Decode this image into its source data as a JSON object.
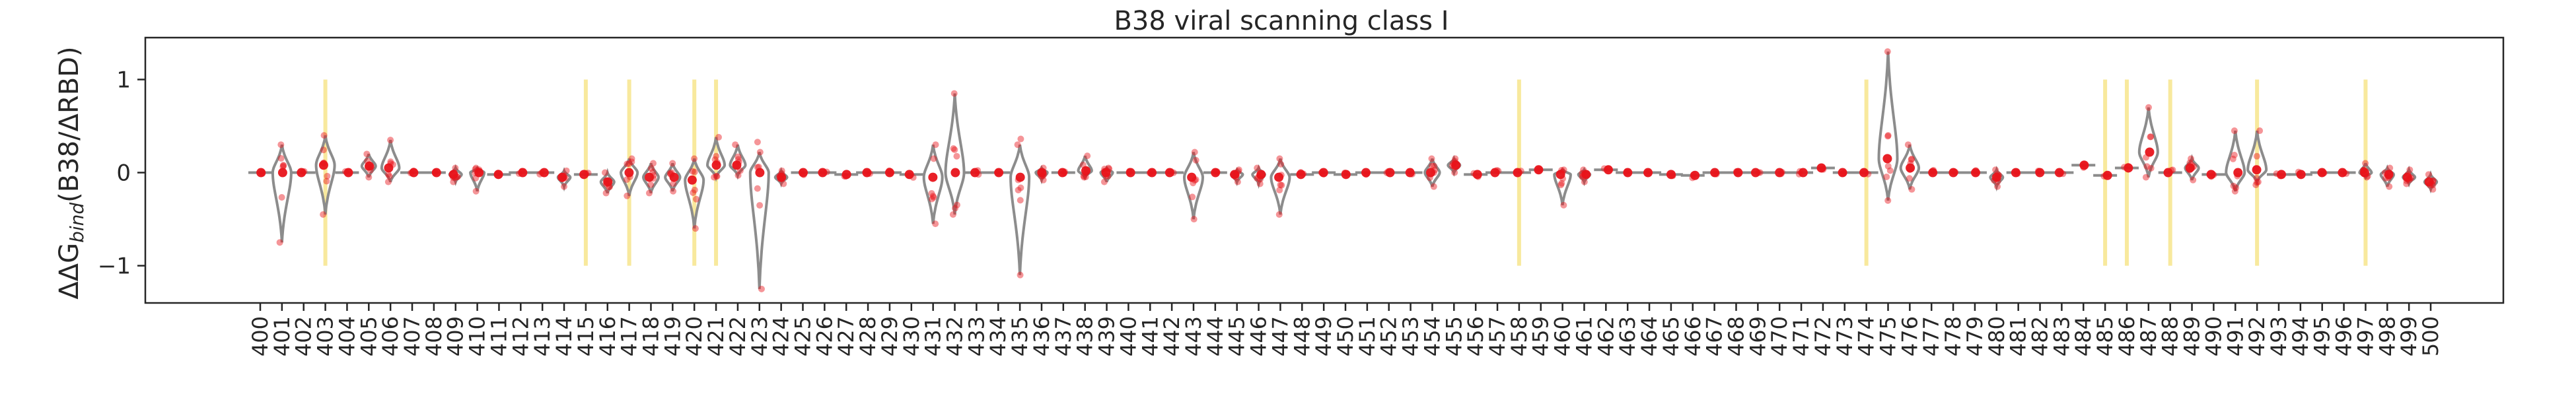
{
  "chart_data": {
    "type": "violin",
    "title": "B38 viral scanning class I",
    "ylabel_main": "ΔΔG",
    "ylabel_sub": "bind",
    "ylabel_rest": "(B38/ΔRBD)",
    "xlabel": "",
    "ylim": [
      -1.4,
      1.45
    ],
    "yticks": [
      -1,
      0,
      1
    ],
    "grid": false,
    "highlight_color": "#f7e58c",
    "violin_color": "#8c8c8c",
    "point_color": "#e8141b",
    "x_start": 400,
    "x_end": 500,
    "highlight_sites": [
      403,
      415,
      417,
      420,
      421,
      458,
      474,
      485,
      486,
      488,
      492,
      497
    ],
    "site_values": [
      {
        "site": 400,
        "center": 0.0,
        "min": -0.02,
        "max": 0.02
      },
      {
        "site": 401,
        "center": 0.0,
        "min": -0.75,
        "max": 0.3
      },
      {
        "site": 402,
        "center": 0.0,
        "min": -0.03,
        "max": 0.03
      },
      {
        "site": 403,
        "center": 0.08,
        "min": -0.45,
        "max": 0.4
      },
      {
        "site": 404,
        "center": 0.0,
        "min": -0.03,
        "max": 0.03
      },
      {
        "site": 405,
        "center": 0.07,
        "min": -0.05,
        "max": 0.2
      },
      {
        "site": 406,
        "center": 0.05,
        "min": -0.1,
        "max": 0.35
      },
      {
        "site": 407,
        "center": 0.0,
        "min": -0.05,
        "max": 0.05
      },
      {
        "site": 408,
        "center": 0.0,
        "min": -0.03,
        "max": 0.03
      },
      {
        "site": 409,
        "center": -0.02,
        "min": -0.1,
        "max": 0.05
      },
      {
        "site": 410,
        "center": 0.0,
        "min": -0.2,
        "max": 0.05
      },
      {
        "site": 411,
        "center": -0.02,
        "min": -0.08,
        "max": 0.03
      },
      {
        "site": 412,
        "center": 0.0,
        "min": -0.03,
        "max": 0.03
      },
      {
        "site": 413,
        "center": 0.0,
        "min": -0.03,
        "max": 0.03
      },
      {
        "site": 414,
        "center": -0.05,
        "min": -0.15,
        "max": 0.02
      },
      {
        "site": 415,
        "center": -0.02,
        "min": -0.06,
        "max": 0.03
      },
      {
        "site": 416,
        "center": -0.1,
        "min": -0.22,
        "max": 0.0
      },
      {
        "site": 417,
        "center": 0.0,
        "min": -0.25,
        "max": 0.15
      },
      {
        "site": 418,
        "center": -0.05,
        "min": -0.22,
        "max": 0.1
      },
      {
        "site": 419,
        "center": -0.05,
        "min": -0.2,
        "max": 0.1
      },
      {
        "site": 420,
        "center": -0.08,
        "min": -0.6,
        "max": 0.15
      },
      {
        "site": 421,
        "center": 0.08,
        "min": -0.05,
        "max": 0.38
      },
      {
        "site": 422,
        "center": 0.08,
        "min": -0.03,
        "max": 0.3
      },
      {
        "site": 423,
        "center": 0.0,
        "min": -1.25,
        "max": 0.22
      },
      {
        "site": 424,
        "center": -0.05,
        "min": -0.12,
        "max": 0.02
      },
      {
        "site": 425,
        "center": 0.0,
        "min": -0.05,
        "max": 0.05
      },
      {
        "site": 426,
        "center": 0.0,
        "min": -0.05,
        "max": 0.05
      },
      {
        "site": 427,
        "center": -0.02,
        "min": -0.06,
        "max": 0.03
      },
      {
        "site": 428,
        "center": 0.0,
        "min": -0.03,
        "max": 0.03
      },
      {
        "site": 429,
        "center": 0.0,
        "min": -0.05,
        "max": 0.05
      },
      {
        "site": 430,
        "center": -0.02,
        "min": -0.08,
        "max": 0.03
      },
      {
        "site": 431,
        "center": -0.05,
        "min": -0.55,
        "max": 0.3
      },
      {
        "site": 432,
        "center": 0.0,
        "min": -0.45,
        "max": 0.85
      },
      {
        "site": 433,
        "center": 0.0,
        "min": -0.05,
        "max": 0.05
      },
      {
        "site": 434,
        "center": 0.0,
        "min": -0.05,
        "max": 0.05
      },
      {
        "site": 435,
        "center": -0.05,
        "min": -1.1,
        "max": 0.3
      },
      {
        "site": 436,
        "center": 0.0,
        "min": -0.08,
        "max": 0.05
      },
      {
        "site": 437,
        "center": 0.0,
        "min": -0.03,
        "max": 0.03
      },
      {
        "site": 438,
        "center": 0.02,
        "min": -0.05,
        "max": 0.18
      },
      {
        "site": 439,
        "center": 0.0,
        "min": -0.1,
        "max": 0.05
      },
      {
        "site": 440,
        "center": 0.0,
        "min": -0.03,
        "max": 0.03
      },
      {
        "site": 441,
        "center": 0.0,
        "min": -0.03,
        "max": 0.03
      },
      {
        "site": 442,
        "center": 0.0,
        "min": -0.03,
        "max": 0.03
      },
      {
        "site": 443,
        "center": -0.05,
        "min": -0.5,
        "max": 0.22
      },
      {
        "site": 444,
        "center": 0.0,
        "min": -0.05,
        "max": 0.03
      },
      {
        "site": 445,
        "center": -0.02,
        "min": -0.1,
        "max": 0.03
      },
      {
        "site": 446,
        "center": -0.02,
        "min": -0.12,
        "max": 0.05
      },
      {
        "site": 447,
        "center": -0.05,
        "min": -0.45,
        "max": 0.15
      },
      {
        "site": 448,
        "center": -0.02,
        "min": -0.06,
        "max": 0.03
      },
      {
        "site": 449,
        "center": 0.0,
        "min": -0.05,
        "max": 0.03
      },
      {
        "site": 450,
        "center": -0.02,
        "min": -0.06,
        "max": 0.03
      },
      {
        "site": 451,
        "center": 0.0,
        "min": -0.05,
        "max": 0.05
      },
      {
        "site": 452,
        "center": 0.0,
        "min": -0.03,
        "max": 0.03
      },
      {
        "site": 453,
        "center": 0.0,
        "min": -0.05,
        "max": 0.05
      },
      {
        "site": 454,
        "center": 0.0,
        "min": -0.15,
        "max": 0.15
      },
      {
        "site": 455,
        "center": 0.08,
        "min": 0.0,
        "max": 0.15
      },
      {
        "site": 456,
        "center": -0.02,
        "min": -0.08,
        "max": 0.03
      },
      {
        "site": 457,
        "center": 0.0,
        "min": -0.05,
        "max": 0.05
      },
      {
        "site": 458,
        "center": 0.0,
        "min": -0.05,
        "max": 0.05
      },
      {
        "site": 459,
        "center": 0.03,
        "min": -0.03,
        "max": 0.08
      },
      {
        "site": 460,
        "center": -0.02,
        "min": -0.35,
        "max": 0.03
      },
      {
        "site": 461,
        "center": -0.02,
        "min": -0.1,
        "max": 0.03
      },
      {
        "site": 462,
        "center": 0.03,
        "min": -0.02,
        "max": 0.08
      },
      {
        "site": 463,
        "center": 0.0,
        "min": -0.03,
        "max": 0.03
      },
      {
        "site": 464,
        "center": 0.0,
        "min": -0.03,
        "max": 0.03
      },
      {
        "site": 465,
        "center": -0.02,
        "min": -0.06,
        "max": 0.03
      },
      {
        "site": 466,
        "center": -0.03,
        "min": -0.08,
        "max": 0.02
      },
      {
        "site": 467,
        "center": 0.0,
        "min": -0.03,
        "max": 0.03
      },
      {
        "site": 468,
        "center": 0.0,
        "min": -0.03,
        "max": 0.03
      },
      {
        "site": 469,
        "center": 0.0,
        "min": -0.03,
        "max": 0.03
      },
      {
        "site": 470,
        "center": 0.0,
        "min": -0.03,
        "max": 0.03
      },
      {
        "site": 471,
        "center": 0.0,
        "min": -0.03,
        "max": 0.03
      },
      {
        "site": 472,
        "center": 0.05,
        "min": 0.0,
        "max": 0.1
      },
      {
        "site": 473,
        "center": 0.0,
        "min": -0.05,
        "max": 0.03
      },
      {
        "site": 474,
        "center": 0.0,
        "min": -0.05,
        "max": 0.05
      },
      {
        "site": 475,
        "center": 0.15,
        "min": -0.3,
        "max": 1.3
      },
      {
        "site": 476,
        "center": 0.05,
        "min": -0.18,
        "max": 0.3
      },
      {
        "site": 477,
        "center": 0.0,
        "min": -0.08,
        "max": 0.03
      },
      {
        "site": 478,
        "center": 0.0,
        "min": -0.05,
        "max": 0.03
      },
      {
        "site": 479,
        "center": 0.0,
        "min": -0.05,
        "max": 0.03
      },
      {
        "site": 480,
        "center": -0.05,
        "min": -0.15,
        "max": 0.03
      },
      {
        "site": 481,
        "center": 0.0,
        "min": -0.05,
        "max": 0.03
      },
      {
        "site": 482,
        "center": 0.0,
        "min": -0.03,
        "max": 0.03
      },
      {
        "site": 483,
        "center": 0.0,
        "min": -0.03,
        "max": 0.03
      },
      {
        "site": 484,
        "center": 0.08,
        "min": 0.03,
        "max": 0.12
      },
      {
        "site": 485,
        "center": -0.03,
        "min": -0.08,
        "max": 0.03
      },
      {
        "site": 486,
        "center": 0.05,
        "min": 0.0,
        "max": 0.1
      },
      {
        "site": 487,
        "center": 0.22,
        "min": -0.05,
        "max": 0.7
      },
      {
        "site": 488,
        "center": 0.0,
        "min": -0.05,
        "max": 0.05
      },
      {
        "site": 489,
        "center": 0.05,
        "min": -0.08,
        "max": 0.15
      },
      {
        "site": 490,
        "center": -0.02,
        "min": -0.06,
        "max": 0.03
      },
      {
        "site": 491,
        "center": 0.0,
        "min": -0.2,
        "max": 0.45
      },
      {
        "site": 492,
        "center": 0.03,
        "min": -0.1,
        "max": 0.45
      },
      {
        "site": 493,
        "center": -0.02,
        "min": -0.08,
        "max": 0.03
      },
      {
        "site": 494,
        "center": -0.02,
        "min": -0.06,
        "max": 0.03
      },
      {
        "site": 495,
        "center": 0.0,
        "min": -0.03,
        "max": 0.03
      },
      {
        "site": 496,
        "center": 0.0,
        "min": -0.03,
        "max": 0.03
      },
      {
        "site": 497,
        "center": 0.0,
        "min": -0.05,
        "max": 0.1
      },
      {
        "site": 498,
        "center": -0.02,
        "min": -0.15,
        "max": 0.05
      },
      {
        "site": 499,
        "center": -0.05,
        "min": -0.12,
        "max": 0.03
      },
      {
        "site": 500,
        "center": -0.1,
        "min": -0.18,
        "max": -0.02
      }
    ]
  }
}
